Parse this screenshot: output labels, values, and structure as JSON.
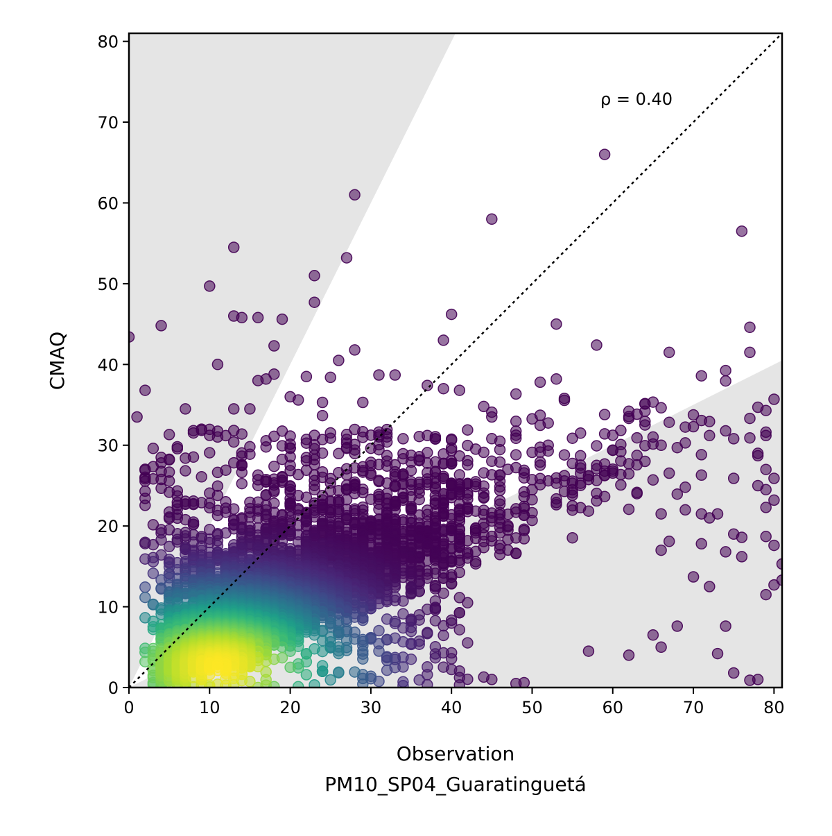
{
  "chart_data": {
    "type": "scatter",
    "xlabel": "Observation",
    "xlabel_sub": "PM10_SP04_Guaratinguetá",
    "ylabel": "CMAQ",
    "annotation": "ρ = 0.40",
    "xlim": [
      0,
      81
    ],
    "ylim": [
      0,
      81
    ],
    "x_ticks": [
      0,
      10,
      20,
      30,
      40,
      50,
      60,
      70,
      80
    ],
    "y_ticks": [
      0,
      10,
      20,
      30,
      40,
      50,
      60,
      70,
      80
    ],
    "grid": false,
    "legend": "none",
    "reference_line": {
      "slope": 1,
      "style": "dotted"
    },
    "shaded_regions": [
      {
        "description": "model over-predicts by more than factor 2",
        "slope_min": 2
      },
      {
        "description": "model under-predicts by more than factor 2",
        "slope_max": 0.5
      }
    ],
    "colormap": "viridis",
    "point_alpha": 0.55,
    "density_core": {
      "x": 11,
      "y": 2.5
    },
    "outliers": [
      [
        59,
        66
      ],
      [
        28,
        61
      ],
      [
        45,
        58
      ],
      [
        76,
        56.5
      ],
      [
        13,
        54.5
      ],
      [
        27,
        53.2
      ],
      [
        23,
        51
      ],
      [
        10,
        49.7
      ],
      [
        23,
        47.7
      ],
      [
        40,
        46.2
      ],
      [
        13,
        46
      ],
      [
        14,
        45.8
      ],
      [
        16,
        45.8
      ],
      [
        19,
        45.6
      ],
      [
        4,
        44.8
      ],
      [
        77,
        44.6
      ],
      [
        53,
        45
      ],
      [
        0,
        43.4
      ],
      [
        39,
        43
      ],
      [
        58,
        42.4
      ],
      [
        18,
        42.3
      ],
      [
        28,
        41.8
      ],
      [
        67,
        41.5
      ],
      [
        77,
        41.5
      ],
      [
        11,
        40
      ],
      [
        26,
        40.5
      ],
      [
        22,
        38.5
      ],
      [
        25,
        38.4
      ],
      [
        31,
        38.7
      ],
      [
        33,
        38.7
      ],
      [
        16,
        38
      ],
      [
        17,
        38.2
      ],
      [
        18,
        38.8
      ],
      [
        53,
        38.2
      ],
      [
        51,
        37.8
      ],
      [
        2,
        36.8
      ],
      [
        37,
        37.4
      ],
      [
        41,
        36.8
      ],
      [
        39,
        37
      ],
      [
        54,
        35.8
      ],
      [
        44,
        34.8
      ],
      [
        45,
        33.5
      ],
      [
        62,
        34.2
      ],
      [
        59,
        33.8
      ],
      [
        64,
        32.5
      ],
      [
        70,
        32.3
      ],
      [
        56,
        31.5
      ],
      [
        79,
        31.2
      ],
      [
        1,
        33.5
      ],
      [
        7,
        34.5
      ],
      [
        13,
        34.5
      ],
      [
        15,
        34.5
      ],
      [
        20,
        36
      ],
      [
        21,
        35.6
      ],
      [
        24,
        35.3
      ],
      [
        29,
        35.3
      ],
      [
        46,
        30.5
      ],
      [
        52,
        30
      ],
      [
        60,
        29.4
      ],
      [
        61,
        29.2
      ],
      [
        68,
        29.7
      ],
      [
        78,
        29
      ],
      [
        78,
        28.7
      ],
      [
        58,
        27.5
      ],
      [
        57,
        26.2
      ],
      [
        71,
        26.3
      ],
      [
        65,
        25.7
      ],
      [
        75,
        25.9
      ],
      [
        80,
        25.9
      ],
      [
        79,
        27
      ],
      [
        62,
        27.7
      ],
      [
        60,
        26.8
      ],
      [
        69,
        24.8
      ],
      [
        78,
        25
      ],
      [
        79,
        24.5
      ],
      [
        80,
        23.2
      ],
      [
        63,
        24
      ],
      [
        66,
        21.5
      ],
      [
        69,
        22
      ],
      [
        71,
        21.5
      ],
      [
        72,
        21
      ],
      [
        73,
        21.5
      ],
      [
        79,
        22.3
      ],
      [
        75,
        19
      ],
      [
        76,
        18.6
      ],
      [
        79,
        18.7
      ],
      [
        80,
        17.6
      ],
      [
        67,
        18.1
      ],
      [
        66,
        17
      ],
      [
        71,
        17.8
      ],
      [
        74,
        16.8
      ],
      [
        76,
        16.2
      ],
      [
        81,
        15.3
      ],
      [
        74,
        7.6
      ],
      [
        78,
        1
      ],
      [
        75,
        1.8
      ],
      [
        77,
        0.9
      ],
      [
        73,
        4.2
      ],
      [
        66,
        5
      ],
      [
        65,
        6.5
      ],
      [
        62,
        4
      ],
      [
        57,
        4.5
      ],
      [
        48,
        0.5
      ],
      [
        45,
        1
      ],
      [
        44,
        1.3
      ],
      [
        49,
        0.6
      ],
      [
        68,
        7.6
      ],
      [
        70,
        13.7
      ],
      [
        72,
        12.5
      ],
      [
        79,
        11.5
      ],
      [
        80,
        12.7
      ],
      [
        81,
        13.3
      ]
    ]
  }
}
